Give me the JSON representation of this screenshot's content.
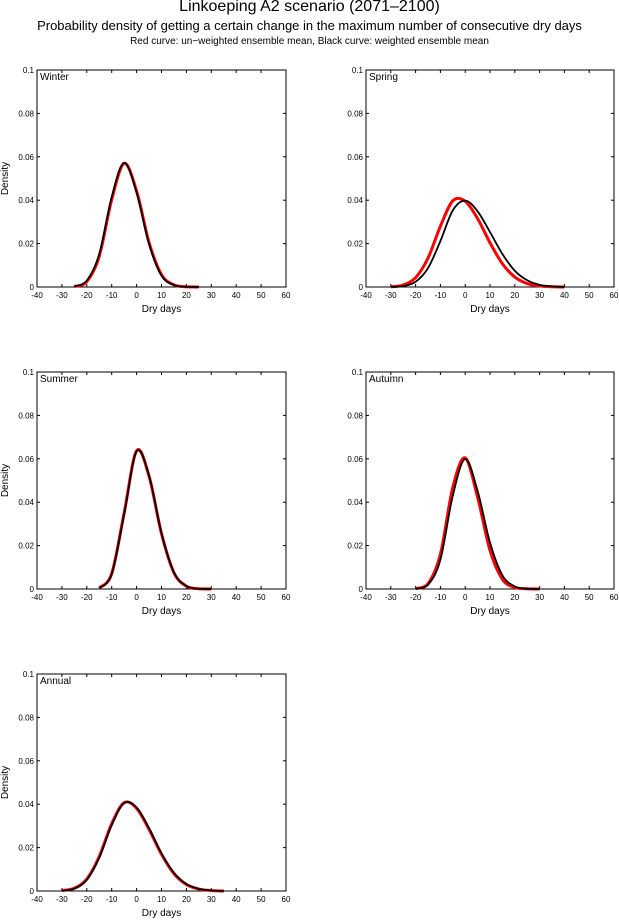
{
  "chart_data": {
    "title": "Linkoeping A2 scenario (2071–2100)",
    "subtitle": "Probability density of getting a certain change in the maximum number of consecutive dry days",
    "note": "Red curve: un−weighted ensemble mean, Black curve: weighted ensemble mean",
    "colors": {
      "unweighted": "#ff0000",
      "weighted": "#000000"
    },
    "panels": [
      {
        "type": "line",
        "label": "Winter",
        "xlabel": "Dry days",
        "ylabel": "Density",
        "xlim": [
          -40,
          60
        ],
        "ylim": [
          0,
          0.1
        ],
        "xticks": [
          -40,
          -30,
          -20,
          -10,
          0,
          10,
          20,
          30,
          40,
          50,
          60
        ],
        "yticks": [
          0,
          0.02,
          0.04,
          0.06,
          0.08,
          0.1
        ],
        "x": [
          -25,
          -20,
          -15,
          -10,
          -5,
          0,
          5,
          10,
          15,
          20,
          25
        ],
        "series": [
          {
            "color": "#ff0000",
            "values": [
              0.0002,
              0.0025,
              0.0142,
              0.0403,
              0.057,
              0.0442,
              0.0205,
              0.0057,
              0.001,
              0.0001,
              0
            ]
          },
          {
            "color": "#000000",
            "values": [
              0.0003,
              0.003,
              0.0152,
              0.0415,
              0.0572,
              0.0435,
              0.0198,
              0.0052,
              0.0009,
              0.0001,
              0
            ]
          }
        ]
      },
      {
        "type": "line",
        "label": "Spring",
        "xlabel": "Dry days",
        "ylabel": "",
        "xlim": [
          -40,
          60
        ],
        "ylim": [
          0,
          0.1
        ],
        "xticks": [
          -40,
          -30,
          -20,
          -10,
          0,
          10,
          20,
          30,
          40,
          50,
          60
        ],
        "yticks": [
          0,
          0.02,
          0.04,
          0.06,
          0.08,
          0.1
        ],
        "x": [
          -30,
          -25,
          -20,
          -15,
          -10,
          -5,
          0,
          5,
          10,
          15,
          20,
          25,
          30,
          35,
          40
        ],
        "series": [
          {
            "color": "#ff0000",
            "values": [
              0.0001,
              0.0009,
              0.0043,
              0.0133,
              0.028,
              0.0397,
              0.0395,
              0.0315,
              0.0204,
              0.0107,
              0.0046,
              0.0016,
              0.0005,
              0.0001,
              0
            ]
          },
          {
            "color": "#000000",
            "values": [
              0.0001,
              0.0004,
              0.0024,
              0.0087,
              0.0212,
              0.0353,
              0.0398,
              0.0349,
              0.0253,
              0.0152,
              0.0075,
              0.0031,
              0.001,
              0.0003,
              0
            ]
          }
        ]
      },
      {
        "type": "line",
        "label": "Summer",
        "xlabel": "Dry days",
        "ylabel": "Density",
        "xlim": [
          -40,
          60
        ],
        "ylim": [
          0,
          0.1
        ],
        "xticks": [
          -40,
          -30,
          -20,
          -10,
          0,
          10,
          20,
          30,
          40,
          50,
          60
        ],
        "yticks": [
          0,
          0.02,
          0.04,
          0.06,
          0.08,
          0.1
        ],
        "x": [
          -15,
          -10,
          -5,
          0,
          5,
          10,
          15,
          20,
          25,
          30
        ],
        "series": [
          {
            "color": "#ff0000",
            "values": [
              0.0005,
              0.0071,
              0.035,
              0.0637,
              0.052,
              0.0255,
              0.0075,
              0.0013,
              0.0001,
              0
            ]
          },
          {
            "color": "#000000",
            "values": [
              0.0004,
              0.0068,
              0.0345,
              0.0634,
              0.0523,
              0.0258,
              0.0077,
              0.0014,
              0.0001,
              0
            ]
          }
        ]
      },
      {
        "type": "line",
        "label": "Autumn",
        "xlabel": "Dry days",
        "ylabel": "",
        "xlim": [
          -40,
          60
        ],
        "ylim": [
          0,
          0.1
        ],
        "xticks": [
          -40,
          -30,
          -20,
          -10,
          0,
          10,
          20,
          30,
          40,
          50,
          60
        ],
        "yticks": [
          0,
          0.02,
          0.04,
          0.06,
          0.08,
          0.1
        ],
        "x": [
          -20,
          -15,
          -10,
          -5,
          0,
          5,
          10,
          15,
          20,
          25,
          30
        ],
        "series": [
          {
            "color": "#ff0000",
            "values": [
              0.0002,
              0.0024,
              0.016,
              0.0468,
              0.0604,
              0.0423,
              0.0178,
              0.0045,
              0.0007,
              0.0001,
              0
            ]
          },
          {
            "color": "#000000",
            "values": [
              0.0001,
              0.0019,
              0.0135,
              0.043,
              0.0599,
              0.0452,
              0.0214,
              0.0063,
              0.0012,
              0.0001,
              0
            ]
          }
        ]
      },
      {
        "type": "line",
        "label": "Annual",
        "xlabel": "Dry days",
        "ylabel": "Density",
        "xlim": [
          -40,
          60
        ],
        "ylim": [
          0,
          0.1
        ],
        "xticks": [
          -40,
          -30,
          -20,
          -10,
          0,
          10,
          20,
          30,
          40,
          50,
          60
        ],
        "yticks": [
          0,
          0.02,
          0.04,
          0.06,
          0.08,
          0.1
        ],
        "x": [
          -30,
          -25,
          -20,
          -15,
          -10,
          -5,
          0,
          5,
          10,
          15,
          20,
          25,
          30,
          35
        ],
        "series": [
          {
            "color": "#ff0000",
            "values": [
              0.0002,
              0.0013,
              0.0055,
              0.0159,
              0.031,
              0.0407,
              0.0381,
              0.0284,
              0.0169,
              0.008,
              0.003,
              0.0009,
              0.0002,
              0
            ]
          },
          {
            "color": "#000000",
            "values": [
              0.0001,
              0.0011,
              0.0051,
              0.0153,
              0.0303,
              0.0405,
              0.0385,
              0.029,
              0.0174,
              0.0084,
              0.0032,
              0.001,
              0.0003,
              0
            ]
          }
        ]
      }
    ]
  }
}
